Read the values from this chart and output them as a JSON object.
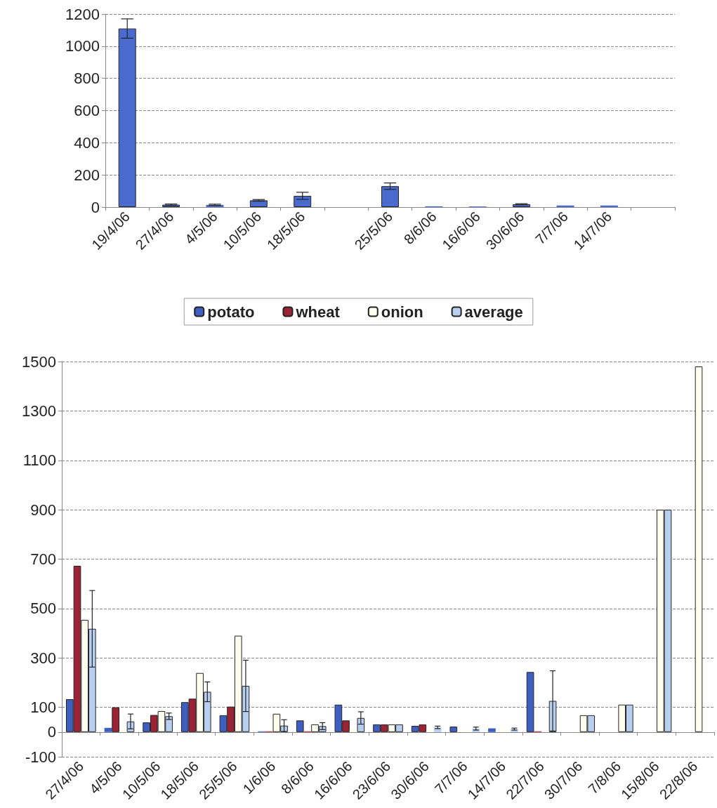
{
  "chart_data": [
    {
      "type": "bar",
      "categories": [
        "19/4/06",
        "27/4/06",
        "4/5/06",
        "10/5/06",
        "18/5/06",
        null,
        "25/5/06",
        "8/6/06",
        "16/6/06",
        "30/6/06",
        "7/7/06",
        "14/7/06",
        null
      ],
      "series": [
        {
          "color": "#4a6acd",
          "values": [
            1110,
            15,
            14,
            42,
            70,
            null,
            130,
            5,
            4,
            18,
            10,
            10,
            null
          ],
          "errors": [
            60,
            4,
            4,
            5,
            22,
            null,
            20,
            null,
            null,
            3,
            null,
            null,
            null
          ]
        }
      ],
      "ylim": [
        0,
        1200
      ],
      "yticks": [
        0,
        200,
        400,
        600,
        800,
        1000,
        1200
      ],
      "grid": "y",
      "legend": false
    },
    {
      "type": "bar",
      "categories": [
        "27/4/06",
        "4/5/06",
        "10/5/06",
        "18/5/06",
        "25/5/06",
        "1/6/06",
        "8/6/06",
        "16/6/06",
        "23/6/06",
        "30/6/06",
        "7/7/06",
        "14/7/06",
        "22/7/06",
        "30/7/06",
        "7/8/06",
        "15/8/06",
        "22/8/06"
      ],
      "series": [
        {
          "name": "potato",
          "color": "#3f5fc0",
          "values": [
            133,
            17,
            39,
            121,
            68,
            3,
            47,
            111,
            31,
            25,
            22,
            15,
            243,
            null,
            null,
            null,
            null
          ]
        },
        {
          "name": "wheat",
          "color": "#9b2335",
          "values": [
            673,
            100,
            69,
            135,
            103,
            3,
            3,
            47,
            31,
            31,
            null,
            null,
            3,
            null,
            null,
            null,
            null
          ]
        },
        {
          "name": "onion",
          "color": "#fffff0",
          "values": [
            454,
            12,
            85,
            239,
            390,
            74,
            31,
            12,
            31,
            10,
            10,
            10,
            null,
            68,
            111,
            900,
            1480
          ]
        },
        {
          "name": "average",
          "color": "#b8cff0",
          "values": [
            418,
            43,
            64,
            163,
            187,
            26,
            24,
            57,
            31,
            19,
            14,
            12,
            126,
            68,
            111,
            900,
            null
          ],
          "errors": [
            155,
            30,
            13,
            40,
            104,
            24,
            14,
            25,
            null,
            5,
            6,
            4,
            122,
            null,
            null,
            null,
            null
          ]
        }
      ],
      "ylim": [
        -100,
        1500
      ],
      "yticks": [
        -100,
        0,
        100,
        300,
        500,
        700,
        900,
        1100,
        1300,
        1500
      ],
      "grid": "y",
      "legend": "top"
    }
  ]
}
